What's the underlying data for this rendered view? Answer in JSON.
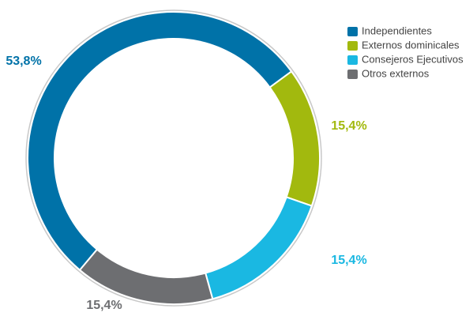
{
  "chart_data": {
    "type": "donut",
    "categories": [
      "Independientes",
      "Externos dominicales",
      "Consejeros Ejecutivos",
      "Otros externos"
    ],
    "values": [
      53.8,
      15.4,
      15.4,
      15.4
    ],
    "value_labels": [
      "53,8%",
      "15,4%",
      "15,4%",
      "15,4%"
    ],
    "colors": [
      "#0072a8",
      "#a2b90e",
      "#1ab8e2",
      "#6d6e71"
    ],
    "legend": "top-right"
  }
}
